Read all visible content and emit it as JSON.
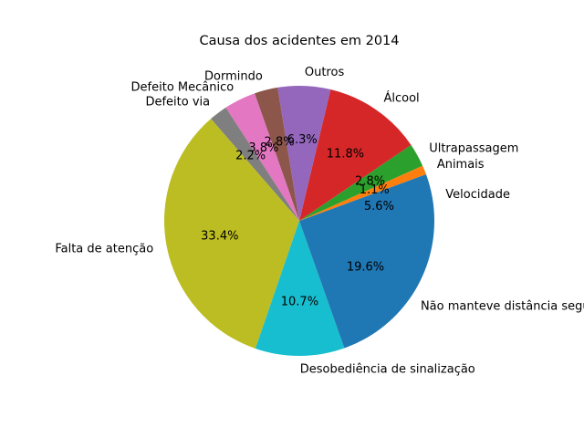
{
  "chart_data": {
    "type": "pie",
    "title": "Causa dos acidentes em 2014",
    "start_angle_deg": 0,
    "direction": "counterclockwise",
    "slices": [
      {
        "label": "Velocidade",
        "value": 5.6,
        "pct_label": "5.6%",
        "color": "#1f77b4"
      },
      {
        "label": "Animais",
        "value": 1.1,
        "pct_label": "1.1%",
        "color": "#ff7f0e"
      },
      {
        "label": "Ultrapassagem",
        "value": 2.8,
        "pct_label": "2.8%",
        "color": "#2ca02c"
      },
      {
        "label": "Álcool",
        "value": 11.8,
        "pct_label": "11.8%",
        "color": "#d62728"
      },
      {
        "label": "Outros",
        "value": 6.3,
        "pct_label": "6.3%",
        "color": "#9467bd"
      },
      {
        "label": "Dormindo",
        "value": 2.8,
        "pct_label": "2.8%",
        "color": "#8c564b"
      },
      {
        "label": "Defeito Mecânico",
        "value": 3.8,
        "pct_label": "3.8%",
        "color": "#e377c2"
      },
      {
        "label": "Defeito via",
        "value": 2.2,
        "pct_label": "2.2%",
        "color": "#7f7f7f"
      },
      {
        "label": "Falta de atenção",
        "value": 33.4,
        "pct_label": "33.4%",
        "color": "#bcbd22"
      },
      {
        "label": "Desobediência de sinalização",
        "value": 10.7,
        "pct_label": "10.7%",
        "color": "#17becf"
      },
      {
        "label": "Não manteve distância segura",
        "value": 19.6,
        "pct_label": "19.6%",
        "color": "#1f77b4"
      }
    ]
  }
}
